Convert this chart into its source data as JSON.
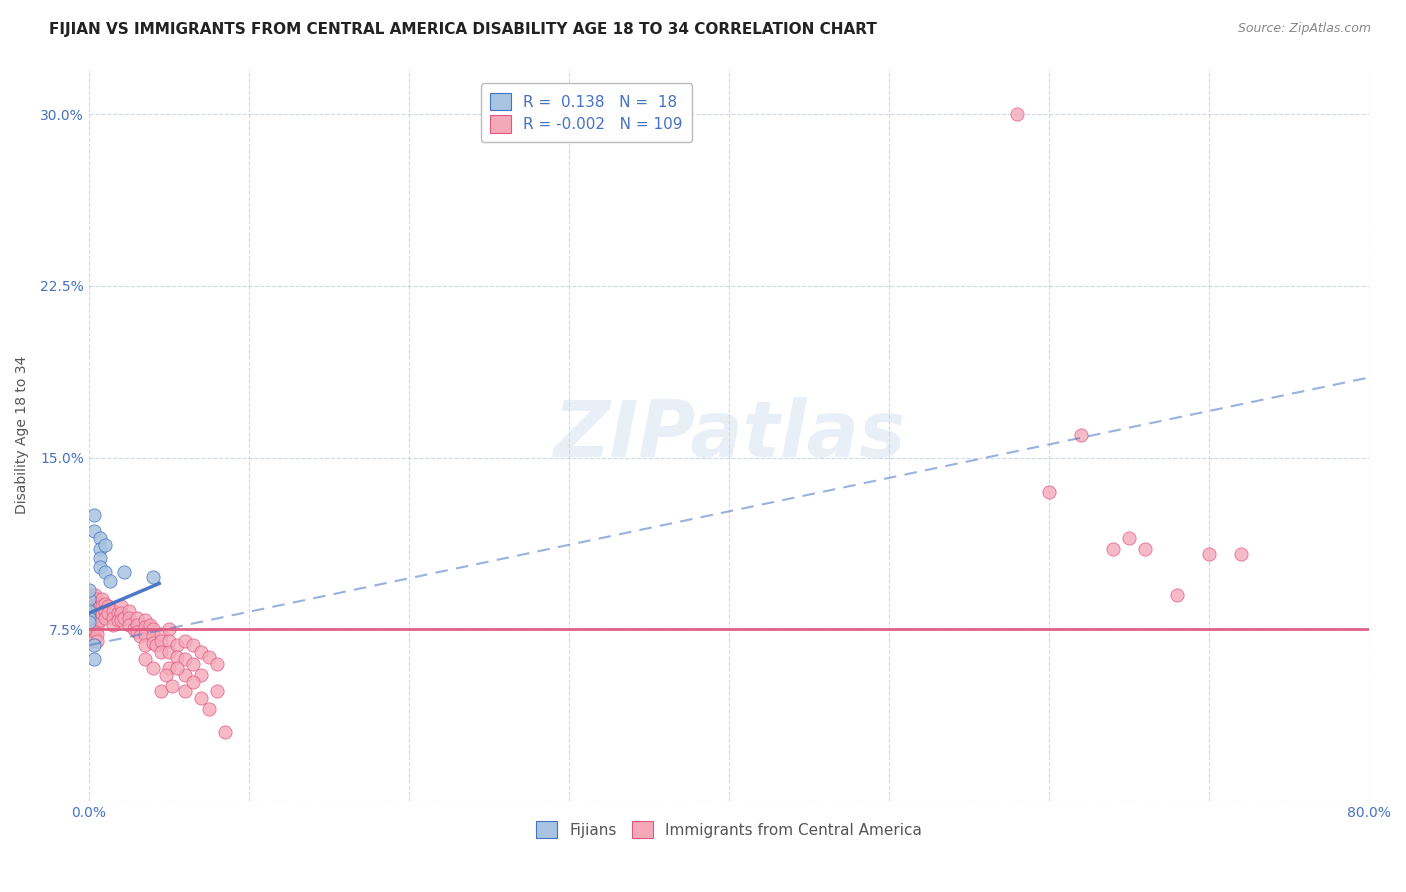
{
  "title": "FIJIAN VS IMMIGRANTS FROM CENTRAL AMERICA DISABILITY AGE 18 TO 34 CORRELATION CHART",
  "source": "Source: ZipAtlas.com",
  "ylabel": "Disability Age 18 to 34",
  "xlim": [
    0.0,
    0.8
  ],
  "ylim": [
    0.0,
    0.32
  ],
  "xticks": [
    0.0,
    0.1,
    0.2,
    0.3,
    0.4,
    0.5,
    0.6,
    0.7,
    0.8
  ],
  "xticklabels": [
    "0.0%",
    "",
    "",
    "",
    "",
    "",
    "",
    "",
    "80.0%"
  ],
  "yticks": [
    0.0,
    0.075,
    0.15,
    0.225,
    0.3
  ],
  "yticklabels": [
    "",
    "7.5%",
    "15.0%",
    "22.5%",
    "30.0%"
  ],
  "watermark": "ZIPatlas",
  "legend_R_fijian": "0.138",
  "legend_N_fijian": "18",
  "legend_R_central": "-0.002",
  "legend_N_central": "109",
  "fijian_color": "#a8c4e0",
  "central_color": "#f4a8b8",
  "fijian_line_color": "#4472c4",
  "central_line_color": "#e05880",
  "background_color": "#ffffff",
  "grid_color": "#c8d4e8",
  "title_fontsize": 11,
  "axis_label_fontsize": 10,
  "tick_fontsize": 10,
  "legend_fontsize": 11,
  "source_fontsize": 9,
  "fijian_scatter": [
    [
      0.003,
      0.125
    ],
    [
      0.003,
      0.118
    ],
    [
      0.007,
      0.115
    ],
    [
      0.007,
      0.11
    ],
    [
      0.007,
      0.106
    ],
    [
      0.007,
      0.102
    ],
    [
      0.01,
      0.112
    ],
    [
      0.01,
      0.1
    ],
    [
      0.0,
      0.088
    ],
    [
      0.0,
      0.083
    ],
    [
      0.0,
      0.08
    ],
    [
      0.0,
      0.078
    ],
    [
      0.003,
      0.068
    ],
    [
      0.003,
      0.062
    ],
    [
      0.022,
      0.1
    ],
    [
      0.04,
      0.098
    ],
    [
      0.0,
      0.092
    ],
    [
      0.013,
      0.096
    ]
  ],
  "central_scatter_cluster": [
    [
      0.0,
      0.09
    ],
    [
      0.0,
      0.085
    ],
    [
      0.0,
      0.082
    ],
    [
      0.0,
      0.08
    ],
    [
      0.0,
      0.078
    ],
    [
      0.0,
      0.076
    ],
    [
      0.0,
      0.074
    ],
    [
      0.0,
      0.072
    ],
    [
      0.002,
      0.088
    ],
    [
      0.002,
      0.085
    ],
    [
      0.002,
      0.082
    ],
    [
      0.002,
      0.079
    ],
    [
      0.002,
      0.076
    ],
    [
      0.002,
      0.073
    ],
    [
      0.002,
      0.07
    ],
    [
      0.004,
      0.09
    ],
    [
      0.004,
      0.086
    ],
    [
      0.004,
      0.083
    ],
    [
      0.004,
      0.08
    ],
    [
      0.004,
      0.077
    ],
    [
      0.004,
      0.074
    ],
    [
      0.004,
      0.071
    ],
    [
      0.005,
      0.088
    ],
    [
      0.005,
      0.085
    ],
    [
      0.005,
      0.082
    ],
    [
      0.005,
      0.079
    ],
    [
      0.005,
      0.076
    ],
    [
      0.005,
      0.073
    ],
    [
      0.005,
      0.07
    ],
    [
      0.006,
      0.086
    ],
    [
      0.006,
      0.083
    ],
    [
      0.006,
      0.08
    ],
    [
      0.007,
      0.085
    ],
    [
      0.007,
      0.082
    ],
    [
      0.007,
      0.079
    ],
    [
      0.008,
      0.088
    ],
    [
      0.008,
      0.085
    ],
    [
      0.008,
      0.082
    ],
    [
      0.01,
      0.086
    ],
    [
      0.01,
      0.083
    ],
    [
      0.01,
      0.08
    ],
    [
      0.012,
      0.085
    ],
    [
      0.012,
      0.082
    ],
    [
      0.015,
      0.083
    ],
    [
      0.015,
      0.08
    ],
    [
      0.015,
      0.077
    ],
    [
      0.018,
      0.082
    ],
    [
      0.018,
      0.079
    ],
    [
      0.02,
      0.085
    ],
    [
      0.02,
      0.082
    ],
    [
      0.02,
      0.079
    ],
    [
      0.022,
      0.08
    ],
    [
      0.025,
      0.083
    ],
    [
      0.025,
      0.08
    ],
    [
      0.025,
      0.077
    ],
    [
      0.028,
      0.075
    ],
    [
      0.03,
      0.08
    ],
    [
      0.03,
      0.077
    ],
    [
      0.03,
      0.074
    ],
    [
      0.032,
      0.072
    ],
    [
      0.035,
      0.079
    ],
    [
      0.035,
      0.076
    ],
    [
      0.035,
      0.073
    ],
    [
      0.035,
      0.068
    ],
    [
      0.035,
      0.062
    ],
    [
      0.038,
      0.077
    ],
    [
      0.04,
      0.075
    ],
    [
      0.04,
      0.072
    ],
    [
      0.04,
      0.069
    ],
    [
      0.042,
      0.068
    ],
    [
      0.045,
      0.073
    ],
    [
      0.045,
      0.07
    ],
    [
      0.045,
      0.065
    ],
    [
      0.05,
      0.075
    ],
    [
      0.05,
      0.07
    ],
    [
      0.05,
      0.065
    ],
    [
      0.05,
      0.058
    ],
    [
      0.055,
      0.068
    ],
    [
      0.055,
      0.063
    ],
    [
      0.06,
      0.07
    ],
    [
      0.06,
      0.062
    ],
    [
      0.06,
      0.055
    ],
    [
      0.065,
      0.068
    ],
    [
      0.065,
      0.06
    ],
    [
      0.07,
      0.065
    ],
    [
      0.07,
      0.055
    ],
    [
      0.075,
      0.063
    ],
    [
      0.08,
      0.06
    ],
    [
      0.04,
      0.058
    ],
    [
      0.045,
      0.048
    ],
    [
      0.048,
      0.055
    ],
    [
      0.052,
      0.05
    ],
    [
      0.055,
      0.058
    ],
    [
      0.06,
      0.048
    ],
    [
      0.065,
      0.052
    ],
    [
      0.07,
      0.045
    ],
    [
      0.075,
      0.04
    ],
    [
      0.08,
      0.048
    ],
    [
      0.085,
      0.03
    ]
  ],
  "central_scatter_outliers": [
    [
      0.58,
      0.3
    ],
    [
      0.6,
      0.135
    ],
    [
      0.62,
      0.16
    ],
    [
      0.64,
      0.11
    ],
    [
      0.65,
      0.115
    ],
    [
      0.66,
      0.11
    ],
    [
      0.68,
      0.09
    ],
    [
      0.7,
      0.108
    ],
    [
      0.72,
      0.108
    ]
  ],
  "fijian_line_x": [
    0.0,
    0.044
  ],
  "fijian_line_y": [
    0.082,
    0.095
  ],
  "central_line_y": 0.075,
  "dashed_line_x": [
    0.0,
    0.8
  ],
  "dashed_line_y": [
    0.068,
    0.185
  ]
}
